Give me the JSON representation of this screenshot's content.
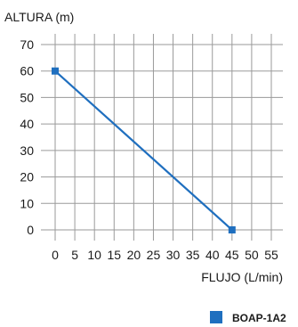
{
  "chart_data": {
    "type": "line",
    "xlabel": "FLUJO (L/min)",
    "ylabel": "ALTURA (m)",
    "xlim": [
      0,
      55
    ],
    "ylim": [
      0,
      70
    ],
    "x_ticks": [
      "0",
      "5",
      "10",
      "15",
      "20",
      "25",
      "30",
      "35",
      "40",
      "45",
      "50",
      "55"
    ],
    "y_ticks": [
      "70",
      "60",
      "50",
      "40",
      "30",
      "20",
      "10",
      "0"
    ],
    "grid": true,
    "legend_position": "bottom-right",
    "series": [
      {
        "name": "BOAP-1A2",
        "color": "#1f6fbf",
        "x": [
          0,
          45
        ],
        "y": [
          60,
          0
        ]
      }
    ]
  }
}
